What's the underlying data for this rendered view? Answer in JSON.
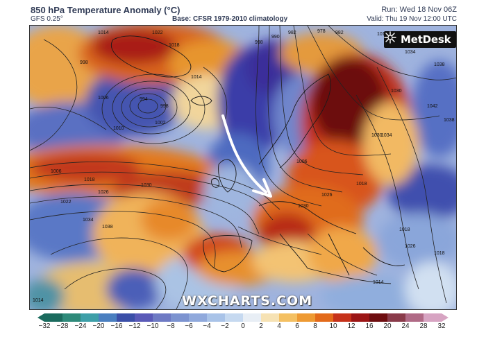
{
  "header": {
    "title": "850 hPa Temperature Anomaly (°C)",
    "model": "GFS 0.25°",
    "base": "Base: CFSR 1979-2010 climatology",
    "run": "Run: Wed 18 Nov 06Z",
    "valid": "Valid: Thu 19 Nov 12:00 UTC"
  },
  "logo": {
    "text": "MetDesk",
    "icon": "metdesk-logo-icon"
  },
  "watermark": "WXCHARTS.COM",
  "colorbar": {
    "ticks": [
      "−32",
      "−28",
      "−24",
      "−20",
      "−16",
      "−12",
      "−10",
      "−8",
      "−6",
      "−4",
      "−2",
      "0",
      "2",
      "4",
      "6",
      "8",
      "10",
      "12",
      "16",
      "20",
      "24",
      "28",
      "32"
    ],
    "colors": [
      "#1b6b5e",
      "#2e8a7a",
      "#3d9fa8",
      "#4a7fc0",
      "#3b4fa8",
      "#5a5ab8",
      "#6e7ac4",
      "#7c93d0",
      "#90a9dc",
      "#a9c3e8",
      "#c6d9f0",
      "#e8eef5",
      "#f6e2b4",
      "#f4c062",
      "#ee9a33",
      "#e36a1a",
      "#c6321a",
      "#9c1616",
      "#6e0d10",
      "#8a3b4a",
      "#b06a86",
      "#d7a4c2"
    ],
    "arrow_colors": {
      "low": "#1b6b5e",
      "high": "#d7a4c2"
    }
  },
  "isobars": {
    "labels": [
      "1014",
      "1022",
      "1018",
      "998",
      "1006",
      "994",
      "998",
      "1002",
      "1010",
      "1014",
      "998",
      "990",
      "982",
      "978",
      "982",
      "1018",
      "1034",
      "1038",
      "1030",
      "1042",
      "1038",
      "1034",
      "1030",
      "1006",
      "1006",
      "1018",
      "1022",
      "1026",
      "1030",
      "1034",
      "1038",
      "1030",
      "1026",
      "1018",
      "1018",
      "1026",
      "1018",
      "1014",
      "1014"
    ]
  },
  "annotation": {
    "arrow": "cold-advection-arrow"
  }
}
